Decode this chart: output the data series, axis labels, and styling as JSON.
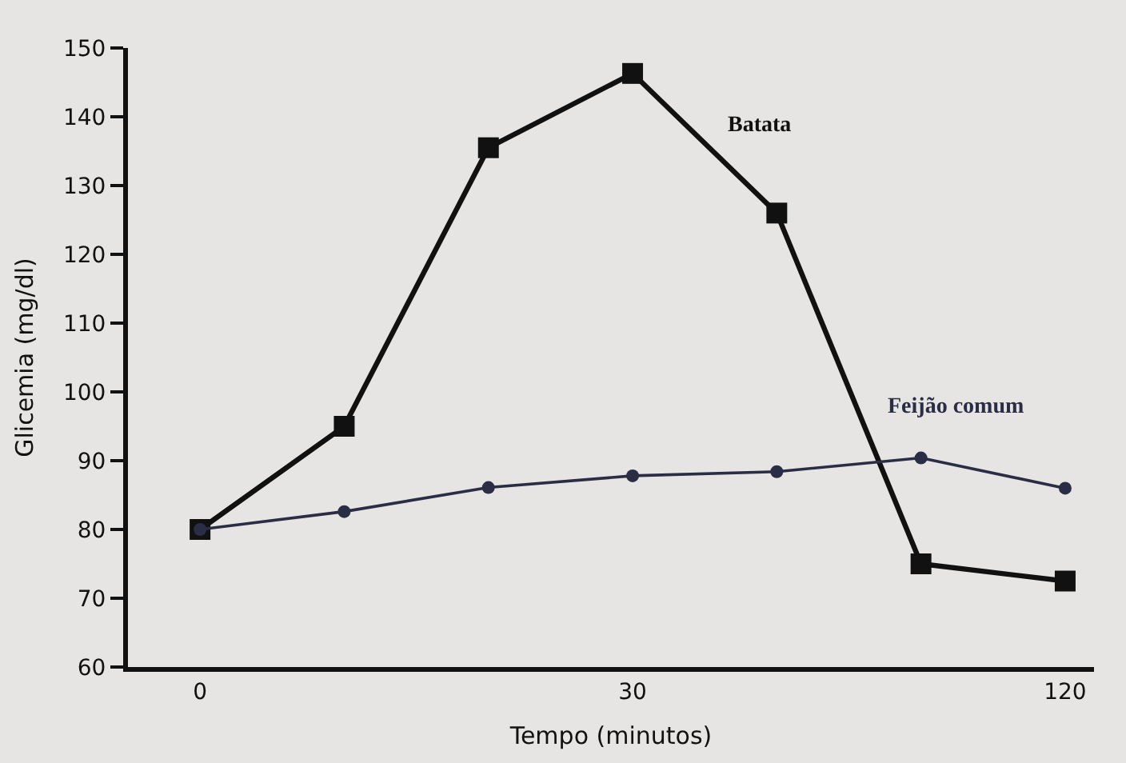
{
  "chart_data": {
    "type": "line",
    "xlabel": "Tempo (minutos)",
    "ylabel": "Glicemia (mg/dl)",
    "categories": [
      "0",
      null,
      null,
      "30",
      null,
      null,
      "120"
    ],
    "ylim": [
      60,
      150
    ],
    "yticks": [
      60,
      70,
      80,
      90,
      100,
      110,
      120,
      130,
      140,
      150
    ],
    "grid": false,
    "legend": false,
    "series": [
      {
        "name": "Batata",
        "color": "#111111",
        "marker": "square",
        "values": [
          80,
          95,
          135.5,
          146.3,
          126,
          75,
          72.5
        ]
      },
      {
        "name": "Feijão comum",
        "color": "#2b2d45",
        "marker": "circle",
        "values": [
          80,
          82.6,
          86.1,
          87.8,
          88.4,
          90.4,
          86
        ]
      }
    ]
  }
}
